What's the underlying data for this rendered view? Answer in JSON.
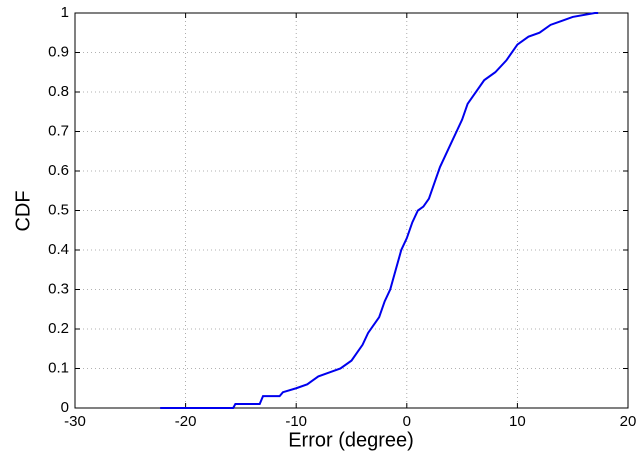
{
  "chart_data": {
    "type": "line",
    "xlabel": "Error (degree)",
    "ylabel": "CDF",
    "x": [
      -22.3,
      -15.7,
      -15.5,
      -13.3,
      -13.0,
      -11.5,
      -11.2,
      -10,
      -9,
      -8,
      -7,
      -6,
      -5,
      -4.5,
      -4,
      -3.5,
      -3,
      -2.5,
      -2,
      -1.5,
      -1,
      -0.5,
      0,
      0.5,
      1,
      1.5,
      2,
      2.5,
      3,
      3.5,
      4,
      4.5,
      5,
      5.5,
      6,
      7,
      8,
      9,
      10,
      11,
      12,
      13,
      14,
      15,
      17,
      17.3
    ],
    "values": [
      0,
      0,
      0.01,
      0.01,
      0.03,
      0.03,
      0.04,
      0.05,
      0.06,
      0.08,
      0.09,
      0.1,
      0.12,
      0.14,
      0.16,
      0.19,
      0.21,
      0.23,
      0.27,
      0.3,
      0.35,
      0.4,
      0.43,
      0.47,
      0.5,
      0.51,
      0.53,
      0.57,
      0.61,
      0.64,
      0.67,
      0.7,
      0.73,
      0.77,
      0.79,
      0.83,
      0.85,
      0.88,
      0.92,
      0.94,
      0.95,
      0.97,
      0.98,
      0.99,
      1,
      1
    ],
    "color": "#0000ee",
    "xlim": [
      -30,
      20
    ],
    "xticks": [
      -30,
      -20,
      -10,
      0,
      10,
      20
    ],
    "ylim": [
      0,
      1
    ],
    "yticks": [
      0,
      0.1,
      0.2,
      0.3,
      0.4,
      0.5,
      0.6,
      0.7,
      0.8,
      0.9,
      1
    ],
    "grid": true
  }
}
